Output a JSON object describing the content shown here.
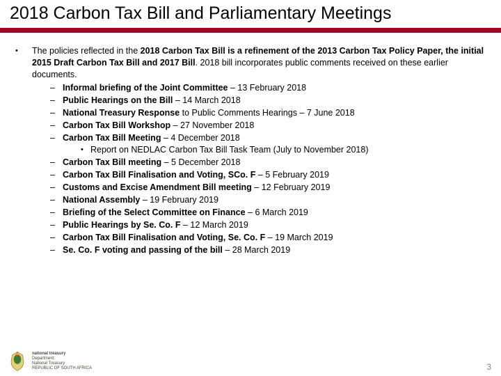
{
  "title": "2018 Carbon Tax Bill and Parliamentary Meetings",
  "colors": {
    "accent": "#a50021",
    "text": "#000000",
    "page_num": "#8a8a8a"
  },
  "intro": {
    "prefix": "The policies reflected in the ",
    "b1": "2018 Carbon Tax Bill is a refinement of the 2013 Carbon Tax Policy Paper, the initial 2015 Draft Carbon Tax Bill and 2017 Bill",
    "suffix": ". 2018 bill incorporates public comments received on these earlier documents."
  },
  "items": [
    {
      "b": "Informal briefing of the Joint Committee",
      "t": " – 13 February 2018"
    },
    {
      "b": "Public Hearings on the Bill ",
      "t": " – 14 March 2018"
    },
    {
      "b": "National Treasury Response ",
      "t": "to Public Comments Hearings – 7 June 2018"
    },
    {
      "b": "Carbon Tax Bill Workshop",
      "t": " – 27 November 2018"
    },
    {
      "b": "Carbon Tax Bill Meeting",
      "t": " – 4 December 2018",
      "sub": [
        {
          "t": "Report on NEDLAC Carbon Tax Bill Task Team (July to November 2018)"
        }
      ]
    },
    {
      "b": "Carbon Tax Bill meeting",
      "t": " – 5 December 2018"
    },
    {
      "b": "Carbon Tax Bill Finalisation and Voting, SCo. F",
      "t": " – 5 February 2019"
    },
    {
      "b": "Customs and Excise Amendment Bill meeting",
      "t": " – 12 February 2019"
    },
    {
      "b": "National Assembly",
      "t": " – 19 February 2019"
    },
    {
      "b": "Briefing of the Select Committee on Finance",
      "t": " – 6 March 2019"
    },
    {
      "b": "Public Hearings by Se. Co. F",
      "t": " – 12 March 2019"
    },
    {
      "b": "Carbon Tax Bill Finalisation and Voting, Se. Co. F",
      "t": " – 19 March 2019"
    },
    {
      "b": "Se. Co. F voting and passing of the bill",
      "t": " – 28 March 2019"
    }
  ],
  "footer": {
    "dept_line1": "national treasury",
    "dept_line2": "Department:",
    "dept_line3": "National Treasury",
    "dept_line4": "REPUBLIC OF SOUTH AFRICA",
    "page": "3"
  }
}
